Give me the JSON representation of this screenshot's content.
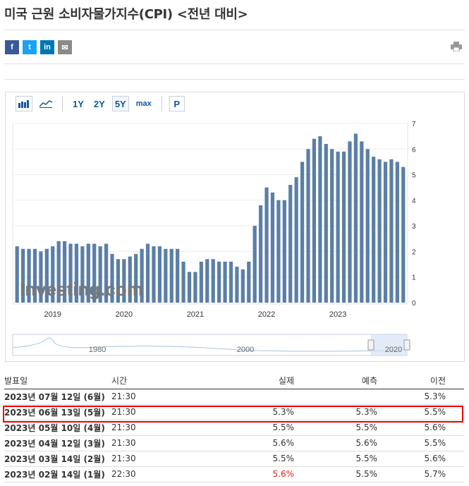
{
  "page_title": "미국 근원 소비자물가지수(CPI) <전년 대비>",
  "share": {
    "facebook": "f",
    "twitter": "t",
    "linkedin": "in",
    "email": "✉"
  },
  "toolbar": {
    "range_buttons": [
      "1Y",
      "2Y",
      "5Y",
      "max"
    ],
    "active_range": "5Y",
    "p_label": "P"
  },
  "colors": {
    "bar": "#5b7fa6",
    "navigator_line": "#a8c4de",
    "highlight": "#e00000",
    "negative_text": "#e02020"
  },
  "chart_data": {
    "type": "bar",
    "title": "",
    "xlabel": "",
    "ylabel": "",
    "ylim": [
      0,
      7
    ],
    "y_ticks": [
      0,
      1,
      2,
      3,
      4,
      5,
      6,
      7
    ],
    "x_labels": [
      "2019",
      "2020",
      "2021",
      "2022",
      "2023"
    ],
    "grid": true,
    "watermark": "Investing.com",
    "navigator_labels": [
      "1980",
      "2000",
      "2020"
    ],
    "values": [
      2.2,
      2.1,
      2.1,
      2.1,
      2.0,
      2.1,
      2.2,
      2.4,
      2.4,
      2.3,
      2.3,
      2.2,
      2.3,
      2.3,
      2.2,
      2.3,
      1.9,
      1.7,
      1.7,
      1.8,
      1.9,
      2.1,
      2.3,
      2.2,
      2.2,
      2.1,
      2.1,
      2.1,
      1.6,
      1.2,
      1.2,
      1.6,
      1.7,
      1.7,
      1.6,
      1.6,
      1.6,
      1.4,
      1.3,
      1.6,
      3.0,
      3.8,
      4.5,
      4.3,
      4.0,
      4.0,
      4.6,
      4.9,
      5.5,
      6.0,
      6.4,
      6.5,
      6.2,
      6.0,
      5.9,
      5.9,
      6.3,
      6.6,
      6.3,
      6.0,
      5.7,
      5.6,
      5.5,
      5.6,
      5.5,
      5.3
    ]
  },
  "table": {
    "headers": {
      "date": "발표일",
      "time": "시간",
      "actual": "실제",
      "forecast": "예측",
      "previous": "이전"
    },
    "rows": [
      {
        "date": "2023년 07월 12일 (6월)",
        "time": "21:30",
        "actual": "",
        "forecast": "",
        "previous": "5.3%"
      },
      {
        "date": "2023년 06월 13일 (5월)",
        "time": "21:30",
        "actual": "5.3%",
        "forecast": "5.3%",
        "previous": "5.5%"
      },
      {
        "date": "2023년 05월 10일 (4월)",
        "time": "21:30",
        "actual": "5.5%",
        "forecast": "5.5%",
        "previous": "5.6%"
      },
      {
        "date": "2023년 04월 12일 (3월)",
        "time": "21:30",
        "actual": "5.6%",
        "forecast": "5.6%",
        "previous": "5.5%"
      },
      {
        "date": "2023년 03월 14일 (2월)",
        "time": "21:30",
        "actual": "5.5%",
        "forecast": "5.5%",
        "previous": "5.6%"
      },
      {
        "date": "2023년 02월 14일 (1월)",
        "time": "22:30",
        "actual": "5.6%",
        "forecast": "5.5%",
        "previous": "5.7%"
      }
    ]
  }
}
